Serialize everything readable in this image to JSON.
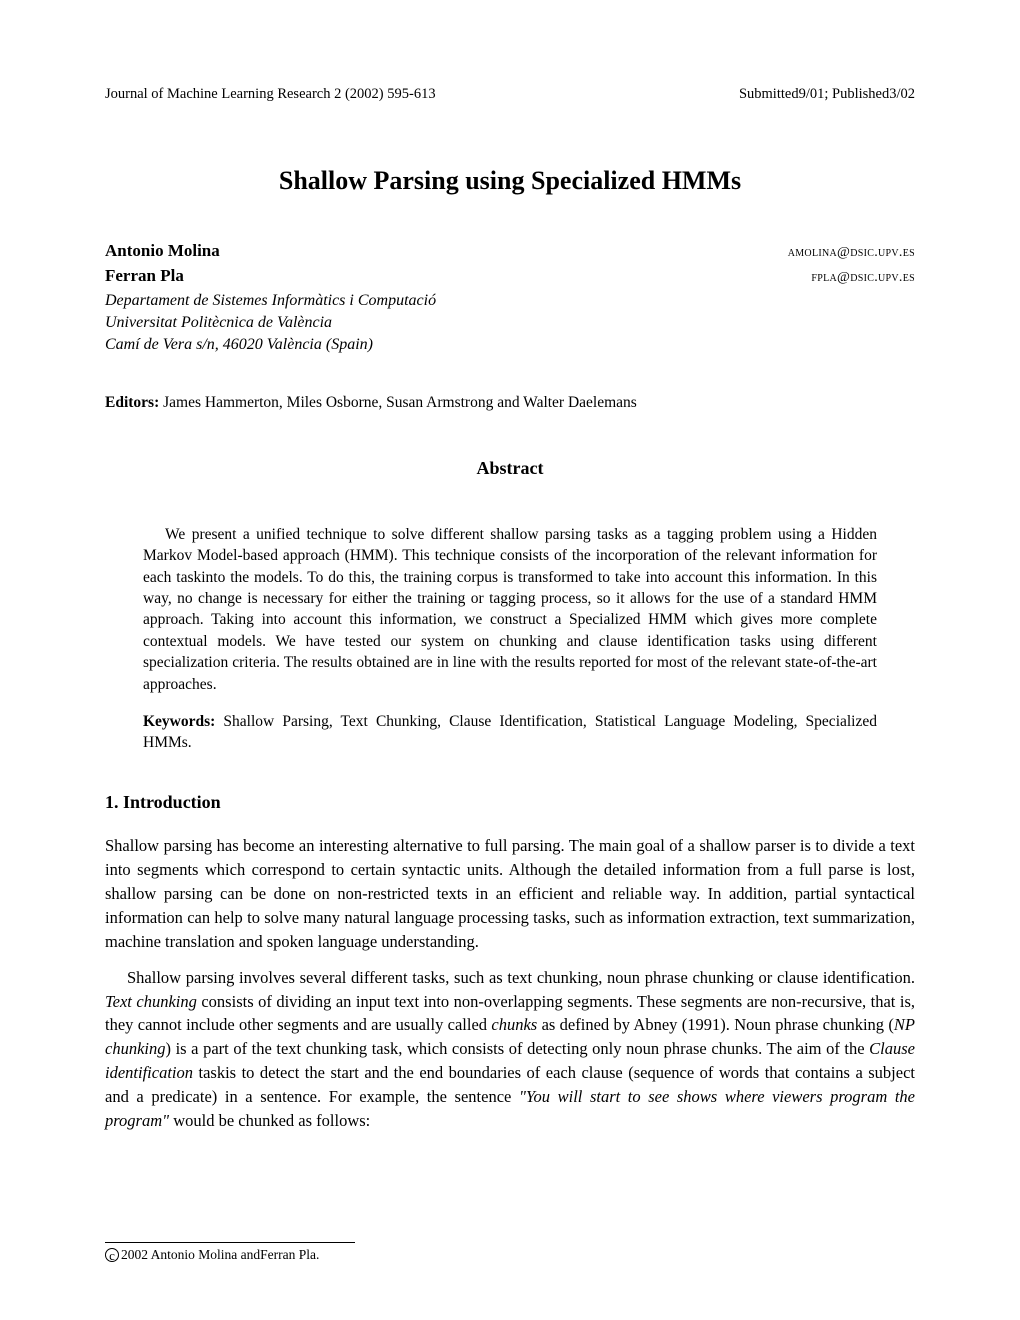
{
  "header": {
    "left": "Journal of Machine Learning Research 2 (2002) 595-613",
    "right": "Submitted9/01; Published3/02"
  },
  "title": "Shallow Parsing using Specialized HMMs",
  "authors": [
    {
      "name": "Antonio Molina",
      "email": "amolina@dsic.upv.es"
    },
    {
      "name": "Ferran Pla",
      "email": "fpla@dsic.upv.es"
    }
  ],
  "affiliation": {
    "line1": "Departament de Sistemes Informàtics i Computació",
    "line2": "Universitat Politècnica de València",
    "line3": "Camí de Vera s/n, 46020 València (Spain)"
  },
  "editors": {
    "label": "Editors:",
    "names": " James Hammerton, Miles Osborne, Susan Armstrong and Walter Daelemans"
  },
  "abstract": {
    "heading": "Abstract",
    "body": "We present a unified technique to solve different shallow parsing tasks as a tagging problem using a Hidden Markov Model-based approach (HMM). This technique consists of the incorporation of the relevant information for each taskinto the models. To do this, the training corpus is transformed to take into account this information. In this way, no change is necessary for either the training or tagging process, so it allows for the use of a standard HMM approach. Taking into account this information, we construct a Specialized HMM which gives more complete contextual models. We have tested our system on chunking and clause identification tasks using different specialization criteria. The results obtained are in line with the results reported for most of the relevant state-of-the-art approaches."
  },
  "keywords": {
    "label": "Keywords:",
    "text": "  Shallow Parsing, Text Chunking, Clause Identification, Statistical Language Modeling, Specialized HMMs."
  },
  "section1": {
    "heading": "1. Introduction",
    "p1_a": "Shallow parsing has become an interesting alternative to full parsing. The main goal of a shallow parser is to divide a text into segments which correspond to certain syntactic units. Although the detailed information from a full parse is lost, shallow parsing can be done on non-restricted texts in an efficient and reliable way. In addition, partial syntactical information can help to solve many natural language processing tasks, such as information extraction, text summarization, machine translation and spoken language understanding.",
    "p2_a": "Shallow parsing involves several different tasks, such as text chunking, noun phrase chunking or clause identification. ",
    "p2_i1": "Text chunking",
    "p2_b": " consists of dividing an input text into non-overlapping segments. These segments are non-recursive, that is, they cannot include other segments and are usually called ",
    "p2_i2": "chunks",
    "p2_c": " as defined by Abney (1991). Noun phrase chunking (",
    "p2_i3": "NP chunking",
    "p2_d": ") is a part of the text chunking task, which consists of detecting only noun phrase chunks. The aim of the ",
    "p2_i4": "Clause identification",
    "p2_e": " taskis to detect the start and the end boundaries of each clause (sequence of words that contains a subject and a predicate) in a sentence. For example, the sentence ",
    "p2_i5": "\"You will start to see shows where viewers program the program\"",
    "p2_f": " would be chunked as follows:"
  },
  "footer": {
    "copyright": "2002 Antonio Molina andFerran Pla."
  }
}
